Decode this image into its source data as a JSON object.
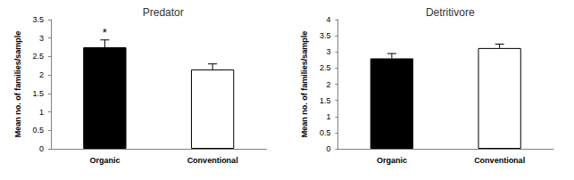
{
  "chart_data": [
    {
      "type": "bar",
      "title": "Predator",
      "y_label": "Mean no. of families/sample",
      "categories": [
        "Organic",
        "Conventional"
      ],
      "values": [
        2.75,
        2.15
      ],
      "errors": [
        0.2,
        0.15
      ],
      "colors": [
        "#000000",
        "#ffffff"
      ],
      "ylim": [
        0,
        3.5
      ],
      "yticks": [
        0,
        0.5,
        1,
        1.5,
        2,
        2.5,
        3,
        3.5
      ],
      "grid": false,
      "annotations": [
        {
          "text": "*",
          "category": "Organic"
        }
      ]
    },
    {
      "type": "bar",
      "title": "Detritivore",
      "y_label": "Mean no. of families/sample",
      "categories": [
        "Organic",
        "Conventional"
      ],
      "values": [
        2.8,
        3.12
      ],
      "errors": [
        0.15,
        0.12
      ],
      "colors": [
        "#000000",
        "#ffffff"
      ],
      "ylim": [
        0,
        4
      ],
      "yticks": [
        0,
        0.5,
        1,
        1.5,
        2,
        2.5,
        3,
        3.5,
        4
      ],
      "grid": false
    }
  ]
}
